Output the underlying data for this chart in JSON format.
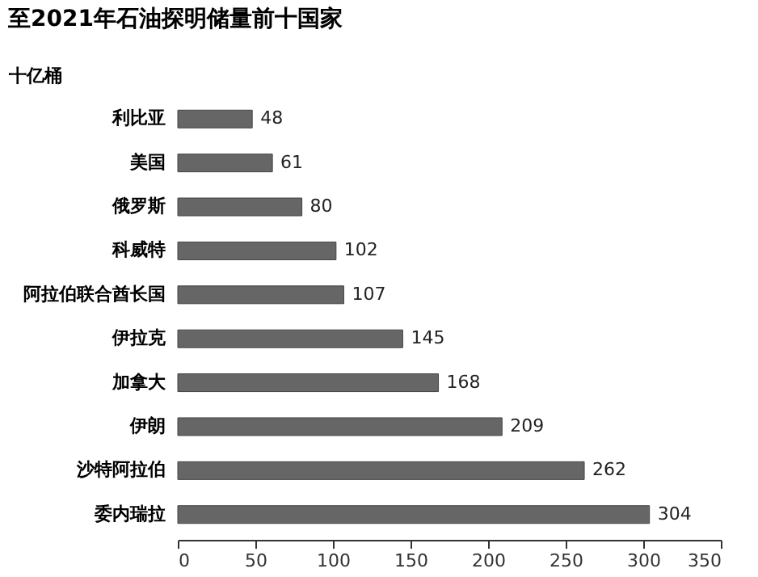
{
  "chart_data": {
    "type": "bar",
    "orientation": "horizontal",
    "title": "至2021年石油探明储量前十国家",
    "ylabel": "十亿桶",
    "categories": [
      "利比亚",
      "美国",
      "俄罗斯",
      "科威特",
      "阿拉伯联合酋长国",
      "伊拉克",
      "加拿大",
      "伊朗",
      "沙特阿拉伯",
      "委内瑞拉"
    ],
    "values": [
      48,
      61,
      80,
      102,
      107,
      145,
      168,
      209,
      262,
      304
    ],
    "color": "#666666",
    "xlim": [
      0,
      350
    ],
    "xticks": [
      0,
      50,
      100,
      150,
      200,
      250,
      300,
      350
    ],
    "grid": false,
    "data_labels": true
  }
}
